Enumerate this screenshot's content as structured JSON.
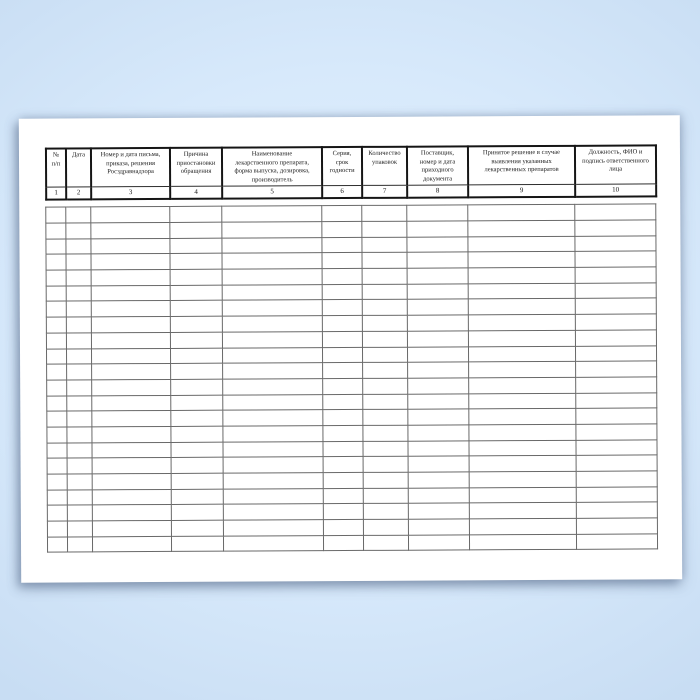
{
  "table": {
    "columns": [
      {
        "num": "1",
        "label": "№\nп/п"
      },
      {
        "num": "2",
        "label": "Дата"
      },
      {
        "num": "3",
        "label": "Номер и дата письма,\nприказа, решения\nРосздравнадзора"
      },
      {
        "num": "4",
        "label": "Причина\nприостановки\nобращения"
      },
      {
        "num": "5",
        "label": "Наименование\nлекарственного препарата,\nформа выпуска, дозировка,\nпроизводитель"
      },
      {
        "num": "6",
        "label": "Серия,\nсрок\nгодности"
      },
      {
        "num": "7",
        "label": "Количество\nупаковок"
      },
      {
        "num": "8",
        "label": "Поставщик,\nномер и дата\nприходного\nдокумента"
      },
      {
        "num": "9",
        "label": "Принятое решение в случае\nвыявления указанных\nлекарственных препаратов"
      },
      {
        "num": "10",
        "label": "Должность, ФИО и\nподпись ответственного\nлица"
      }
    ],
    "empty_row_count": 22,
    "empty_cell_value": ""
  },
  "colors": {
    "background_center": "#e4f1fe",
    "background_edge": "#c8ddf3",
    "paper": "#ffffff",
    "header_border": "#151515",
    "grid_line": "#696969",
    "text": "#1a1a1a"
  }
}
